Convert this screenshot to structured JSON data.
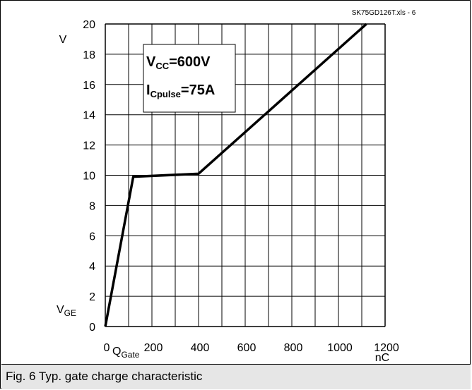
{
  "chart_data": {
    "type": "line",
    "source_label": "SK75GD126T.xls - 6",
    "x": [
      0,
      120,
      400,
      1120
    ],
    "series": [
      {
        "values": [
          0,
          9.9,
          10.1,
          20
        ]
      }
    ],
    "xlim": [
      0,
      1200
    ],
    "ylim": [
      0,
      20
    ],
    "x_ticks": [
      0,
      200,
      400,
      600,
      800,
      1000,
      1200
    ],
    "y_ticks": [
      0,
      2,
      4,
      6,
      8,
      10,
      12,
      14,
      16,
      18,
      20
    ],
    "x_minor_step": 100,
    "grid": true,
    "x_unit": "nC",
    "y_unit": "V",
    "xlabel": {
      "main": "Q",
      "sub": "Gate"
    },
    "ylabel": {
      "main": "V",
      "sub": "GE"
    },
    "annotations": [
      {
        "main": "V",
        "sub": "CC",
        "rest": "=600V"
      },
      {
        "main": "I",
        "sub": "Cpulse",
        "rest": "=75A"
      }
    ],
    "colors": {
      "line": "#000000",
      "grid": "#000000",
      "caption_bg": "#e6e6e6"
    }
  },
  "caption": "Fig. 6 Typ. gate charge characteristic"
}
